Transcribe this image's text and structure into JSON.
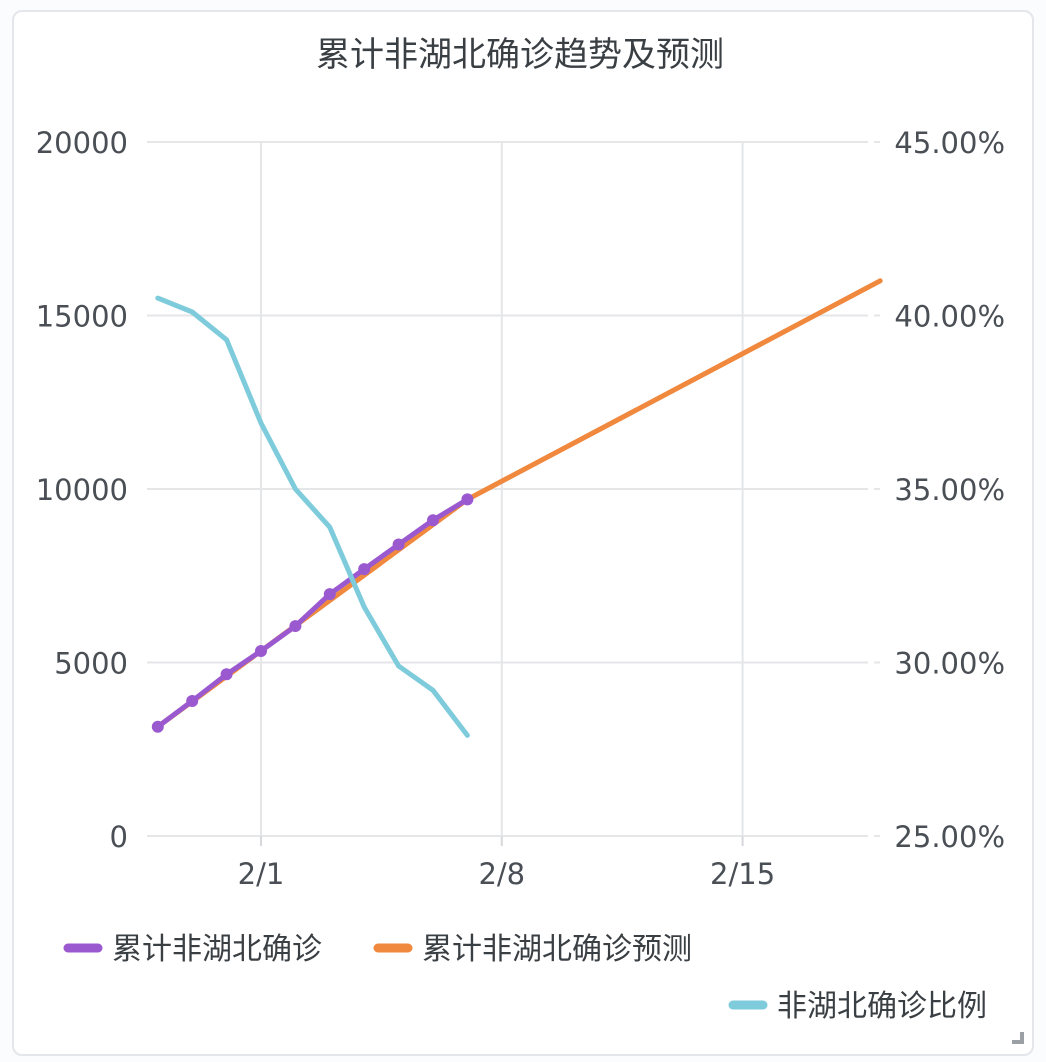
{
  "chart_data": {
    "type": "line",
    "title": "累计非湖北确诊趋势及预测",
    "x_ticks": [
      "2/1",
      "2/8",
      "2/15"
    ],
    "x_tick_days": [
      0,
      7,
      14
    ],
    "y_left": {
      "ticks": [
        "0",
        "5000",
        "10000",
        "15000",
        "20000"
      ],
      "range": [
        0,
        20000
      ]
    },
    "y_right": {
      "ticks": [
        "25.00%",
        "30.00%",
        "35.00%",
        "40.00%",
        "45.00%"
      ],
      "range": [
        0.25,
        0.45
      ]
    },
    "grid": true,
    "legend_position": "bottom",
    "series": [
      {
        "name": "累计非湖北确诊",
        "color": "#9b59d0",
        "axis": "left",
        "markers": true,
        "x": [
          "1/29",
          "1/30",
          "1/31",
          "2/1",
          "2/2",
          "2/3",
          "2/4",
          "2/5",
          "2/6",
          "2/7"
        ],
        "y": [
          3150,
          3890,
          4660,
          5330,
          6050,
          6970,
          7690,
          8400,
          9100,
          9700
        ]
      },
      {
        "name": "累计非湖北确诊预测",
        "color": "#f0883e",
        "axis": "left",
        "markers": false,
        "x": [
          "1/29",
          "2/7",
          "2/19"
        ],
        "y": [
          3150,
          9700,
          16000
        ]
      },
      {
        "name": "非湖北确诊比例",
        "color": "#7ecbdb",
        "axis": "right",
        "markers": false,
        "x": [
          "1/29",
          "1/30",
          "1/31",
          "2/1",
          "2/2",
          "2/3",
          "2/4",
          "2/5",
          "2/6",
          "2/7"
        ],
        "y": [
          0.405,
          0.401,
          0.393,
          0.369,
          0.35,
          0.339,
          0.316,
          0.299,
          0.292,
          0.279
        ]
      }
    ]
  }
}
